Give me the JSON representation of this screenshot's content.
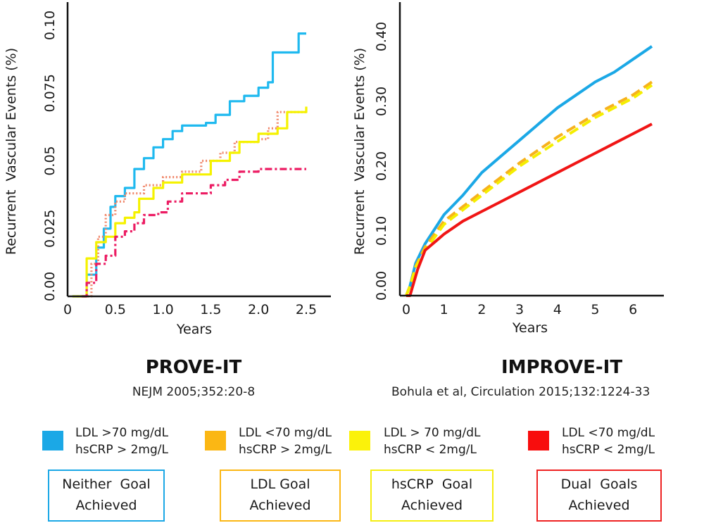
{
  "chart_data": [
    {
      "type": "line",
      "title": "PROVE-IT",
      "subtitle": "NEJM 2005;352:20-8",
      "xlabel": "Years",
      "ylabel": "Recurrent  Vascular Events (%)",
      "xlim": [
        0,
        2.5
      ],
      "ylim": [
        0,
        0.1
      ],
      "xticks": [
        0,
        0.5,
        1.0,
        1.5,
        2.0,
        2.5
      ],
      "xtick_labels": [
        "0",
        "0.5",
        "1.0",
        "1.5",
        "2.0",
        "2.5"
      ],
      "yticks": [
        0,
        0.025,
        0.05,
        0.075,
        0.1
      ],
      "ytick_labels": [
        "0.00",
        "0.025",
        "0.05",
        "0.075",
        "0.10"
      ],
      "grid": false,
      "series": [
        {
          "name": "Neither Goal Achieved",
          "color": "#1fb9ef",
          "style": "step-solid",
          "x": [
            0.05,
            0.15,
            0.2,
            0.3,
            0.38,
            0.45,
            0.5,
            0.6,
            0.7,
            0.8,
            0.9,
            1.0,
            1.1,
            1.2,
            1.45,
            1.55,
            1.7,
            1.85,
            2.0,
            2.1,
            2.15,
            2.4,
            2.42,
            2.5
          ],
          "y": [
            0,
            0,
            0.008,
            0.018,
            0.025,
            0.033,
            0.037,
            0.04,
            0.047,
            0.051,
            0.055,
            0.058,
            0.061,
            0.063,
            0.064,
            0.067,
            0.072,
            0.074,
            0.077,
            0.079,
            0.09,
            0.09,
            0.097,
            0.097
          ]
        },
        {
          "name": "LDL Goal Achieved",
          "color": "#f0876a",
          "style": "dotted",
          "x": [
            0.1,
            0.15,
            0.25,
            0.32,
            0.4,
            0.5,
            0.6,
            0.8,
            1.0,
            1.2,
            1.4,
            1.6,
            1.75,
            2.0,
            2.1,
            2.2,
            2.5
          ],
          "y": [
            0,
            0,
            0.012,
            0.022,
            0.03,
            0.035,
            0.038,
            0.041,
            0.044,
            0.046,
            0.05,
            0.053,
            0.057,
            0.058,
            0.062,
            0.068,
            0.068
          ]
        },
        {
          "name": "hsCRP Goal Achieved",
          "color": "#f5f200",
          "style": "step-solid",
          "x": [
            0.05,
            0.12,
            0.2,
            0.3,
            0.4,
            0.5,
            0.6,
            0.7,
            0.75,
            0.9,
            1.0,
            1.2,
            1.5,
            1.7,
            1.8,
            2.0,
            2.2,
            2.3,
            2.5,
            2.5
          ],
          "y": [
            0,
            0,
            0.014,
            0.02,
            0.022,
            0.027,
            0.029,
            0.031,
            0.036,
            0.04,
            0.042,
            0.045,
            0.05,
            0.053,
            0.057,
            0.06,
            0.062,
            0.068,
            0.068,
            0.07
          ]
        },
        {
          "name": "Dual Goals Achieved",
          "color": "#ec1c63",
          "style": "dash-dot",
          "x": [
            0.15,
            0.2,
            0.3,
            0.4,
            0.5,
            0.6,
            0.7,
            0.8,
            0.95,
            1.05,
            1.2,
            1.35,
            1.5,
            1.65,
            1.8,
            2.0,
            2.5
          ],
          "y": [
            0,
            0.005,
            0.012,
            0.015,
            0.022,
            0.024,
            0.027,
            0.03,
            0.031,
            0.035,
            0.038,
            0.038,
            0.041,
            0.043,
            0.046,
            0.047,
            0.047
          ]
        }
      ]
    },
    {
      "type": "line",
      "title": "IMPROVE-IT",
      "subtitle": "Bohula et al, Circulation 2015;132:1224-33",
      "xlabel": "Years",
      "ylabel": "Recurrent  Vascular Events (%)",
      "xlim": [
        0,
        6.5
      ],
      "ylim": [
        0,
        0.4
      ],
      "xticks": [
        0,
        1,
        2,
        3,
        4,
        5,
        6
      ],
      "xtick_labels": [
        "0",
        "1",
        "2",
        "3",
        "4",
        "5",
        "6"
      ],
      "yticks": [
        0,
        0.1,
        0.2,
        0.3,
        0.4
      ],
      "ytick_labels": [
        "0.00",
        "0.10",
        "0.20",
        "0.30",
        "0.40"
      ],
      "grid": false,
      "series": [
        {
          "name": "Neither Goal Achieved",
          "color": "#1ba8e6",
          "style": "solid",
          "x": [
            0,
            0.1,
            0.25,
            0.5,
            1,
            1.5,
            2,
            2.5,
            3,
            3.5,
            4,
            4.5,
            5,
            5.5,
            6,
            6.5
          ],
          "y": [
            0,
            0.015,
            0.05,
            0.08,
            0.125,
            0.155,
            0.19,
            0.215,
            0.24,
            0.265,
            0.29,
            0.31,
            0.33,
            0.345,
            0.365,
            0.385
          ]
        },
        {
          "name": "LDL Goal Achieved",
          "color": "#f7b21c",
          "style": "dashed",
          "x": [
            0,
            0.1,
            0.25,
            0.5,
            1,
            2,
            3,
            4,
            5,
            6,
            6.5
          ],
          "y": [
            0,
            0.015,
            0.045,
            0.075,
            0.115,
            0.16,
            0.205,
            0.245,
            0.28,
            0.31,
            0.33
          ]
        },
        {
          "name": "hsCRP Goal Achieved",
          "color": "#f5ee00",
          "style": "dashed",
          "x": [
            0,
            0.1,
            0.25,
            0.5,
            1,
            2,
            3,
            4,
            5,
            6,
            6.5
          ],
          "y": [
            0,
            0.015,
            0.043,
            0.07,
            0.11,
            0.155,
            0.2,
            0.238,
            0.275,
            0.305,
            0.325
          ]
        },
        {
          "name": "Dual Goals Achieved",
          "color": "#f01515",
          "style": "solid",
          "x": [
            0,
            0.1,
            0.3,
            0.5,
            0.8,
            1,
            1.5,
            2,
            2.5,
            3,
            3.5,
            4,
            4.5,
            5,
            5.5,
            6,
            6.5
          ],
          "y": [
            0,
            0,
            0.04,
            0.07,
            0.085,
            0.095,
            0.115,
            0.13,
            0.145,
            0.16,
            0.175,
            0.19,
            0.205,
            0.22,
            0.235,
            0.25,
            0.265
          ]
        }
      ]
    }
  ],
  "studies": [
    {
      "name": "PROVE-IT",
      "citation": "NEJM 2005;352:20-8"
    },
    {
      "name": "IMPROVE-IT",
      "citation": "Bohula et al, Circulation 2015;132:1224-33"
    }
  ],
  "legend": [
    {
      "line1": "LDL >70 mg/dL",
      "line2": "hsCRP > 2mg/L",
      "swatch_color": "#1ba8e6",
      "goal_line1": "Neither  Goal",
      "goal_line2": "Achieved",
      "box_color": "#1ba8e6"
    },
    {
      "line1": "LDL <70 mg/dL",
      "line2": "hsCRP > 2mg/L",
      "swatch_color": "#fbb714",
      "goal_line1": "LDL Goal",
      "goal_line2": "Achieved",
      "box_color": "#fbb714"
    },
    {
      "line1": "LDL > 70 mg/dL",
      "line2": "hsCRP < 2mg/L",
      "swatch_color": "#fbf20a",
      "goal_line1": "hsCRP  Goal",
      "goal_line2": "Achieved",
      "box_color": "#f5ee10"
    },
    {
      "line1": "LDL <70 mg/dL",
      "line2": "hsCRP < 2mg/L",
      "swatch_color": "#f80d0d",
      "goal_line1": "Dual  Goals",
      "goal_line2": "Achieved",
      "box_color": "#ee2222"
    }
  ]
}
